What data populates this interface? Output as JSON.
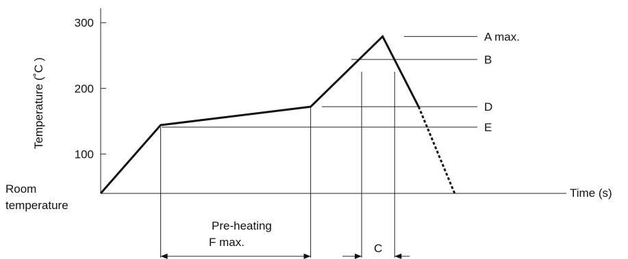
{
  "chart_data": {
    "type": "line",
    "title": "",
    "xlabel": "Time (s)",
    "ylabel": "Temperature (˚C )",
    "yticks": [
      100,
      200,
      300
    ],
    "origin_label_lines": [
      "Room",
      "temperature"
    ],
    "series": [
      {
        "x": [
          0,
          0.2,
          0.7,
          0.94,
          1.06
        ],
        "y": [
          40,
          144,
          172,
          279,
          172
        ]
      }
    ],
    "cooling_extension": {
      "x": [
        1.06,
        1.18
      ],
      "y": [
        172,
        40
      ]
    },
    "reference_levels": [
      {
        "label": "A max.",
        "y": 279
      },
      {
        "label": "B",
        "y": 244
      },
      {
        "label": "D",
        "y": 172
      },
      {
        "label": "E",
        "y": 141
      }
    ],
    "interval_annotations": [
      {
        "label_lines": [
          "Pre-heating",
          "F max."
        ],
        "from_x": 0.2,
        "to_x": 0.7
      },
      {
        "label_lines": [
          "C"
        ],
        "from_x": 0.87,
        "to_x": 0.98
      }
    ]
  }
}
